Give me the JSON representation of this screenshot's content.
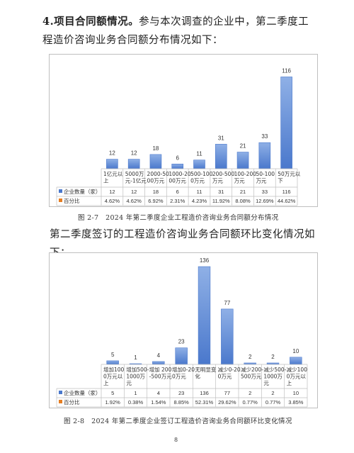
{
  "section1": {
    "heading": "4.项目合同额情况。",
    "body": "参与本次调查的企业中，第二季度工程造价咨询业务合同额分布情况如下："
  },
  "chart1_caption": "图 2-7　2024 年第二季度企业工程造价咨询业务合同额分布情况",
  "section2": {
    "body": "第二季度签订的工程造价咨询业务合同额环比变化情况如下："
  },
  "chart2_caption": "图 2-8　2024 年第二季度企业签订工程造价咨询业务合同额环比变化情况",
  "page_number": "8",
  "colors": {
    "bar": "#4a78cc",
    "bar_light": "#8fb0e6",
    "swatch2": "#e67e22",
    "border": "#bfbfbf"
  },
  "chart_data": [
    {
      "type": "bar",
      "categories": [
        [
          "1亿元以",
          "上"
        ],
        [
          "5000万",
          "元-1亿元"
        ],
        [
          "2000-50",
          "00万元"
        ],
        [
          "1000-20",
          "00万元"
        ],
        [
          "500-100",
          "0万元"
        ],
        [
          "200-500",
          "万元"
        ],
        [
          "100-200",
          "万元"
        ],
        [
          "50-100",
          "万元"
        ],
        [
          "50万元以",
          "下"
        ]
      ],
      "series": [
        {
          "name": "企业数量（家）",
          "values": [
            12,
            12,
            18,
            6,
            11,
            31,
            21,
            33,
            116
          ]
        },
        {
          "name": "百分比",
          "values": [
            "4.62%",
            "4.62%",
            "6.92%",
            "2.31%",
            "4.23%",
            "11.92%",
            "8.08%",
            "12.69%",
            "44.62%"
          ]
        }
      ],
      "ylim": [
        0,
        120
      ],
      "grid": false,
      "legend": "table-below"
    },
    {
      "type": "bar",
      "categories": [
        [
          "增加100",
          "0万元以",
          "上"
        ],
        [
          "增加500-",
          "1000万",
          "元"
        ],
        [
          "增加 200",
          "-500万元"
        ],
        [
          "增加0-20",
          "0万元"
        ],
        [
          "无明显变",
          "化"
        ],
        [
          "减少0-20",
          "0万元"
        ],
        [
          "减少200-",
          "500万元"
        ],
        [
          "减少500-",
          "1000万",
          "元"
        ],
        [
          "减少100",
          "0万元以",
          "上"
        ]
      ],
      "series": [
        {
          "name": "企业数量（家）",
          "values": [
            5,
            1,
            4,
            23,
            136,
            77,
            2,
            2,
            10
          ]
        },
        {
          "name": "百分比",
          "values": [
            "1.92%",
            "0.38%",
            "1.54%",
            "8.85%",
            "52.31%",
            "29.62%",
            "0.77%",
            "0.77%",
            "3.85%"
          ]
        }
      ],
      "ylim": [
        0,
        140
      ],
      "grid": false,
      "legend": "table-below"
    }
  ]
}
